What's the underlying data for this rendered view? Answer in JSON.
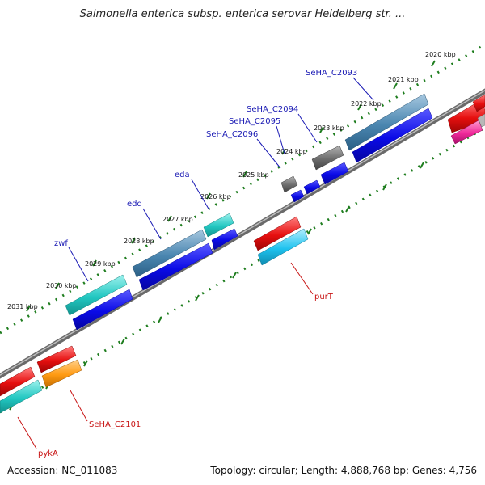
{
  "title": "Salmonella enterica subsp. enterica serovar Heidelberg str. ...",
  "footer": {
    "accession": "Accession: NC_011083",
    "summary": "Topology: circular; Length: 4,888,768 bp; Genes: 4,756"
  },
  "colors": {
    "backbone": "#8a8a8a",
    "tick": "#1e7d1e",
    "forward_label": "#1a1ab4",
    "reverse_label": "#c81414",
    "cds_blue": "#0a0ae6",
    "gene_teal": "#22c7c1",
    "gene_steel": "#4a86b0",
    "gene_gray": "#6d6d6d",
    "gene_red": "#e60f0f",
    "gene_cyan": "#1ec2ee",
    "gene_orange": "#ff9a12",
    "gene_pink": "#f0289a"
  },
  "kbp_ticks": [
    "2020 kbp",
    "2021 kbp",
    "2022 kbp",
    "2023 kbp",
    "2024 kbp",
    "2025 kbp",
    "2026 kbp",
    "2027 kbp",
    "2028 kbp",
    "2029 kbp",
    "2030 kbp",
    "2031 kbp"
  ],
  "forward_genes": [
    "SeHA_C2093",
    "SeHA_C2094",
    "SeHA_C2095",
    "SeHA_C2096",
    "eda",
    "edd",
    "zwf"
  ],
  "reverse_genes": [
    "purT",
    "SeHA_C2101",
    "pykA"
  ]
}
